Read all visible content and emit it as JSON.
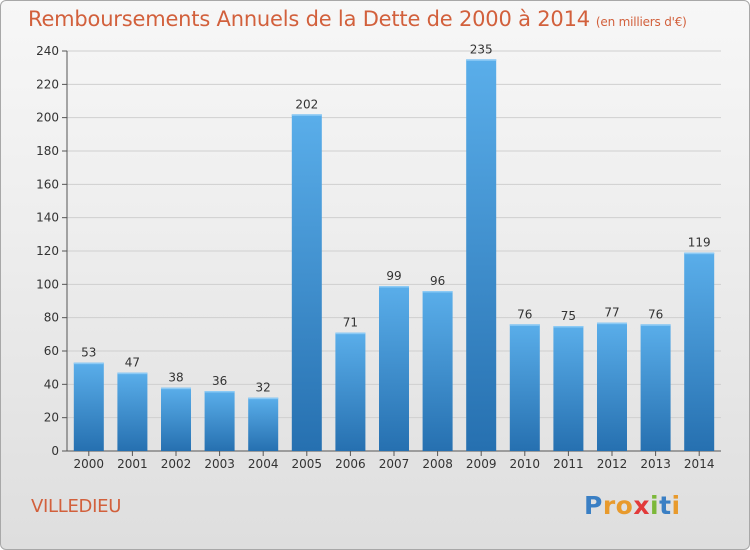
{
  "header": {
    "title": "Remboursements Annuels de la Dette de 2000 à 2014",
    "unit": "(en milliers d'€)"
  },
  "footer": {
    "commune": "VILLEDIEU"
  },
  "logo": {
    "letters": [
      "P",
      "r",
      "o",
      "x",
      "i",
      "t",
      "i"
    ],
    "colors": [
      "#3a7fc4",
      "#e89a2c",
      "#e89a2c",
      "#e23a3a",
      "#7cb83a",
      "#3a7fc4",
      "#e89a2c"
    ]
  },
  "colors": {
    "accent": "#d2603c",
    "bar_top": "#5aaeea",
    "bar_bottom": "#2670b0"
  },
  "chart_data": {
    "type": "bar",
    "title": "Remboursements Annuels de la Dette de 2000 à 2014",
    "categories": [
      "2000",
      "2001",
      "2002",
      "2003",
      "2004",
      "2005",
      "2006",
      "2007",
      "2008",
      "2009",
      "2010",
      "2011",
      "2012",
      "2013",
      "2014"
    ],
    "values": [
      53,
      47,
      38,
      36,
      32,
      202,
      71,
      99,
      96,
      235,
      76,
      75,
      77,
      76,
      119
    ],
    "ylim": [
      0,
      240
    ],
    "yticks": [
      0,
      20,
      40,
      60,
      80,
      100,
      120,
      140,
      160,
      180,
      200,
      220,
      240
    ],
    "grid": true,
    "data_labels": true
  }
}
